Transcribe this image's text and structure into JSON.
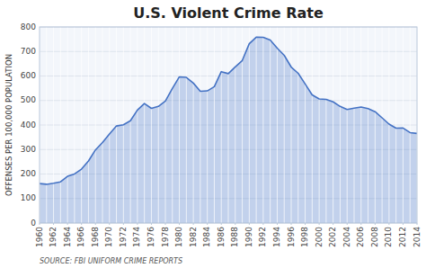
{
  "chart_data": {
    "type": "area",
    "title": "U.S. Violent Crime Rate",
    "ylabel": "OFFENSES PER 100,000 POPULATION",
    "annotation": "SOURCE: FBI UNIFORM CRIME REPORTS",
    "x": [
      1960,
      1961,
      1962,
      1963,
      1964,
      1965,
      1966,
      1967,
      1968,
      1969,
      1970,
      1971,
      1972,
      1973,
      1974,
      1975,
      1976,
      1977,
      1978,
      1979,
      1980,
      1981,
      1982,
      1983,
      1984,
      1985,
      1986,
      1987,
      1988,
      1989,
      1990,
      1991,
      1992,
      1993,
      1994,
      1995,
      1996,
      1997,
      1998,
      1999,
      2000,
      2001,
      2002,
      2003,
      2004,
      2005,
      2006,
      2007,
      2008,
      2009,
      2010,
      2011,
      2012,
      2013,
      2014
    ],
    "values": [
      160.9,
      158.1,
      162.3,
      168.2,
      190.6,
      200.2,
      220.0,
      253.2,
      298.4,
      328.7,
      363.5,
      396.0,
      401.0,
      417.4,
      461.1,
      487.8,
      467.8,
      475.9,
      497.8,
      548.9,
      596.6,
      594.3,
      571.1,
      537.7,
      539.2,
      556.6,
      617.7,
      609.7,
      637.2,
      663.1,
      731.8,
      758.2,
      757.7,
      746.8,
      713.6,
      684.5,
      636.6,
      611.0,
      567.6,
      523.0,
      506.5,
      504.5,
      494.4,
      475.8,
      463.2,
      469.0,
      473.5,
      466.9,
      454.5,
      429.4,
      403.6,
      387.1,
      387.8,
      369.1,
      365.5
    ],
    "color": "#4472C4",
    "xlim": [
      1960,
      2014
    ],
    "xticks": [
      1960,
      1962,
      1964,
      1966,
      1968,
      1970,
      1972,
      1974,
      1976,
      1978,
      1980,
      1982,
      1984,
      1986,
      1988,
      1990,
      1992,
      1994,
      1996,
      1998,
      2000,
      2002,
      2004,
      2006,
      2008,
      2010,
      2012,
      2014
    ],
    "ylim": [
      0,
      800
    ],
    "yticks": [
      0,
      100,
      200,
      300,
      400,
      500,
      600,
      700,
      800
    ],
    "grid": true
  }
}
